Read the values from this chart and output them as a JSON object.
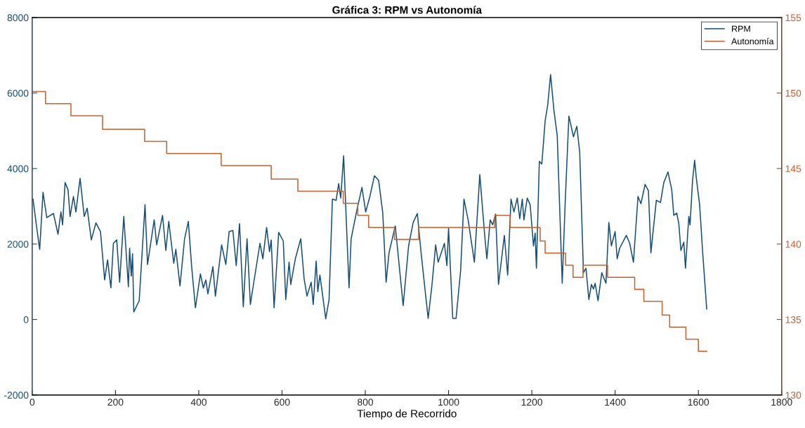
{
  "chart_data": {
    "type": "line",
    "title": "Gráfica 3: RPM vs Autonomía",
    "xlabel": "Tiempo de Recorrido",
    "xlim": [
      0,
      1800
    ],
    "xticks": [
      0,
      200,
      400,
      600,
      800,
      1000,
      1200,
      1400,
      1600,
      1800
    ],
    "ylim": [
      -2000,
      8000
    ],
    "yticks": [
      -2000,
      0,
      2000,
      4000,
      6000,
      8000
    ],
    "y2lim": [
      130,
      155
    ],
    "y2ticks": [
      130,
      135,
      140,
      145,
      150,
      155
    ],
    "grid": false,
    "legend": "top right",
    "series": [
      {
        "name": "RPM",
        "color": "#124e78",
        "x": [
          2,
          11,
          18,
          26,
          35,
          51,
          62,
          69,
          73,
          79,
          86,
          91,
          99,
          105,
          115,
          125,
          132,
          142,
          153,
          164,
          174,
          181,
          189,
          195,
          203,
          210,
          220,
          231,
          234,
          238,
          241,
          244,
          257,
          271,
          277,
          293,
          299,
          313,
          321,
          328,
          340,
          345,
          355,
          366,
          375,
          383,
          392,
          404,
          411,
          417,
          422,
          434,
          440,
          455,
          465,
          473,
          482,
          490,
          498,
          507,
          516,
          524,
          531,
          547,
          554,
          563,
          570,
          574,
          581,
          592,
          603,
          609,
          617,
          621,
          632,
          645,
          653,
          660,
          670,
          675,
          682,
          686,
          691,
          705,
          713,
          721,
          730,
          736,
          741,
          748,
          761,
          766,
          780,
          792,
          801,
          811,
          822,
          832,
          842,
          850,
          857,
          872,
          891,
          904,
          915,
          925,
          934,
          943,
          951,
          960,
          969,
          975,
          990,
          996,
          1000,
          1010,
          1018,
          1029,
          1037,
          1047,
          1062,
          1075,
          1087,
          1092,
          1100,
          1106,
          1113,
          1120,
          1134,
          1142,
          1150,
          1157,
          1165,
          1171,
          1177,
          1181,
          1189,
          1196,
          1204,
          1208,
          1211,
          1218,
          1224,
          1232,
          1238,
          1245,
          1253,
          1261,
          1273,
          1280,
          1289,
          1300,
          1308,
          1315,
          1324,
          1330,
          1337,
          1343,
          1348,
          1352,
          1359,
          1368,
          1378,
          1385,
          1391,
          1400,
          1405,
          1411,
          1427,
          1435,
          1444,
          1455,
          1462,
          1472,
          1480,
          1486,
          1499,
          1509,
          1517,
          1527,
          1536,
          1541,
          1548,
          1553,
          1558,
          1565,
          1569,
          1577,
          1580,
          1586,
          1591,
          1595,
          1603,
          1610,
          1620
        ],
        "values": [
          3190,
          2420,
          1860,
          3370,
          2700,
          2810,
          2260,
          2850,
          2510,
          3630,
          3440,
          2730,
          3260,
          2850,
          3740,
          2730,
          2950,
          2110,
          2560,
          2330,
          1050,
          1580,
          840,
          2020,
          2110,
          990,
          2730,
          870,
          1890,
          1150,
          1740,
          200,
          500,
          3040,
          1460,
          2640,
          1980,
          2760,
          1830,
          2600,
          1490,
          1860,
          890,
          2140,
          2600,
          1400,
          310,
          1210,
          840,
          1050,
          680,
          1400,
          620,
          1980,
          1460,
          2330,
          2360,
          1430,
          2540,
          340,
          2140,
          400,
          900,
          2020,
          1610,
          2440,
          1800,
          2110,
          310,
          2310,
          2080,
          530,
          1520,
          930,
          1610,
          2140,
          1090,
          620,
          990,
          400,
          1550,
          740,
          1180,
          20,
          530,
          3190,
          3160,
          3600,
          3220,
          4340,
          840,
          2140,
          2910,
          3500,
          2850,
          3260,
          3810,
          3690,
          2820,
          990,
          1770,
          2480,
          370,
          1950,
          2570,
          2810,
          1770,
          840,
          30,
          900,
          1980,
          1520,
          2020,
          1430,
          2420,
          30,
          30,
          1300,
          3190,
          2640,
          1520,
          3840,
          2200,
          1610,
          2640,
          2510,
          2790,
          930,
          2230,
          1180,
          3190,
          2850,
          3220,
          2670,
          3190,
          2640,
          3220,
          3040,
          1950,
          2290,
          1360,
          4190,
          4120,
          5270,
          5670,
          6490,
          5550,
          4870,
          960,
          3070,
          5390,
          4840,
          5120,
          4430,
          1240,
          1360,
          530,
          930,
          810,
          960,
          500,
          1240,
          960,
          2570,
          1950,
          2330,
          1610,
          1890,
          2230,
          2020,
          1520,
          3260,
          3070,
          3580,
          3410,
          1770,
          3160,
          3100,
          3630,
          3910,
          3440,
          2760,
          2820,
          2540,
          1830,
          2050,
          1360,
          2730,
          2510,
          3690,
          4220,
          3750,
          3040,
          1830,
          280
        ]
      },
      {
        "name": "Autonomía",
        "type": "step",
        "axis": "y2",
        "color": "#c8602e",
        "x": [
          0,
          32,
          93,
          169,
          270,
          323,
          454,
          574,
          638,
          747,
          782,
          808,
          870,
          928,
          1111,
          1148,
          1220,
          1232,
          1281,
          1299,
          1323,
          1382,
          1447,
          1469,
          1513,
          1531,
          1570,
          1600,
          1620
        ],
        "values": [
          150.1,
          149.3,
          148.5,
          147.6,
          146.8,
          146.0,
          145.2,
          144.3,
          143.5,
          142.7,
          141.9,
          141.1,
          140.3,
          141.1,
          141.9,
          141.1,
          140.2,
          139.4,
          138.6,
          137.8,
          138.6,
          137.8,
          137.0,
          136.2,
          135.3,
          134.5,
          133.7,
          132.9,
          132.9
        ]
      }
    ]
  }
}
